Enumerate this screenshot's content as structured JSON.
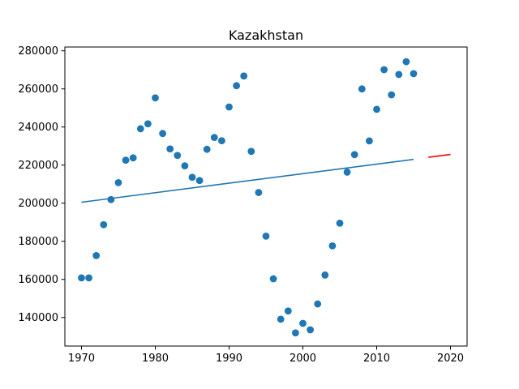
{
  "chart_data": {
    "type": "scatter",
    "title": "Kazakhstan",
    "xlabel": "",
    "ylabel": "",
    "xlim": [
      1967.75,
      2022.25
    ],
    "ylim": [
      125000,
      282000
    ],
    "x_ticks": [
      1970,
      1980,
      1990,
      2000,
      2010,
      2020
    ],
    "y_ticks": [
      140000,
      160000,
      180000,
      200000,
      220000,
      240000,
      260000,
      280000
    ],
    "grid": false,
    "legend": "none",
    "series": [
      {
        "kind": "scatter",
        "color": "#1f77b4",
        "points": [
          [
            1970,
            160800
          ],
          [
            1971,
            160800
          ],
          [
            1972,
            172500
          ],
          [
            1973,
            188700
          ],
          [
            1974,
            201900
          ],
          [
            1975,
            210800
          ],
          [
            1976,
            222600
          ],
          [
            1977,
            223800
          ],
          [
            1978,
            239100
          ],
          [
            1979,
            241700
          ],
          [
            1980,
            255300
          ],
          [
            1981,
            236600
          ],
          [
            1982,
            228500
          ],
          [
            1983,
            225100
          ],
          [
            1984,
            219600
          ],
          [
            1985,
            213600
          ],
          [
            1986,
            211900
          ],
          [
            1987,
            228300
          ],
          [
            1988,
            234500
          ],
          [
            1989,
            232800
          ],
          [
            1990,
            250500
          ],
          [
            1991,
            261700
          ],
          [
            1992,
            266800
          ],
          [
            1993,
            227200
          ],
          [
            1994,
            205600
          ],
          [
            1995,
            182700
          ],
          [
            1996,
            160300
          ],
          [
            1997,
            139100
          ],
          [
            1998,
            143400
          ],
          [
            1999,
            131900
          ],
          [
            2000,
            136900
          ],
          [
            2001,
            133500
          ],
          [
            2002,
            147100
          ],
          [
            2003,
            162300
          ],
          [
            2004,
            177600
          ],
          [
            2005,
            189500
          ],
          [
            2006,
            216300
          ],
          [
            2007,
            225500
          ],
          [
            2008,
            260000
          ],
          [
            2009,
            232700
          ],
          [
            2010,
            249300
          ],
          [
            2011,
            270100
          ],
          [
            2012,
            256900
          ],
          [
            2013,
            267600
          ],
          [
            2014,
            274300
          ],
          [
            2015,
            268000
          ]
        ]
      },
      {
        "kind": "line",
        "color": "#1f77b4",
        "points": [
          [
            1970,
            200500
          ],
          [
            2015,
            223000
          ]
        ]
      },
      {
        "kind": "line",
        "color": "#ff0000",
        "points": [
          [
            2017,
            224100
          ],
          [
            2020,
            225600
          ]
        ]
      }
    ]
  }
}
